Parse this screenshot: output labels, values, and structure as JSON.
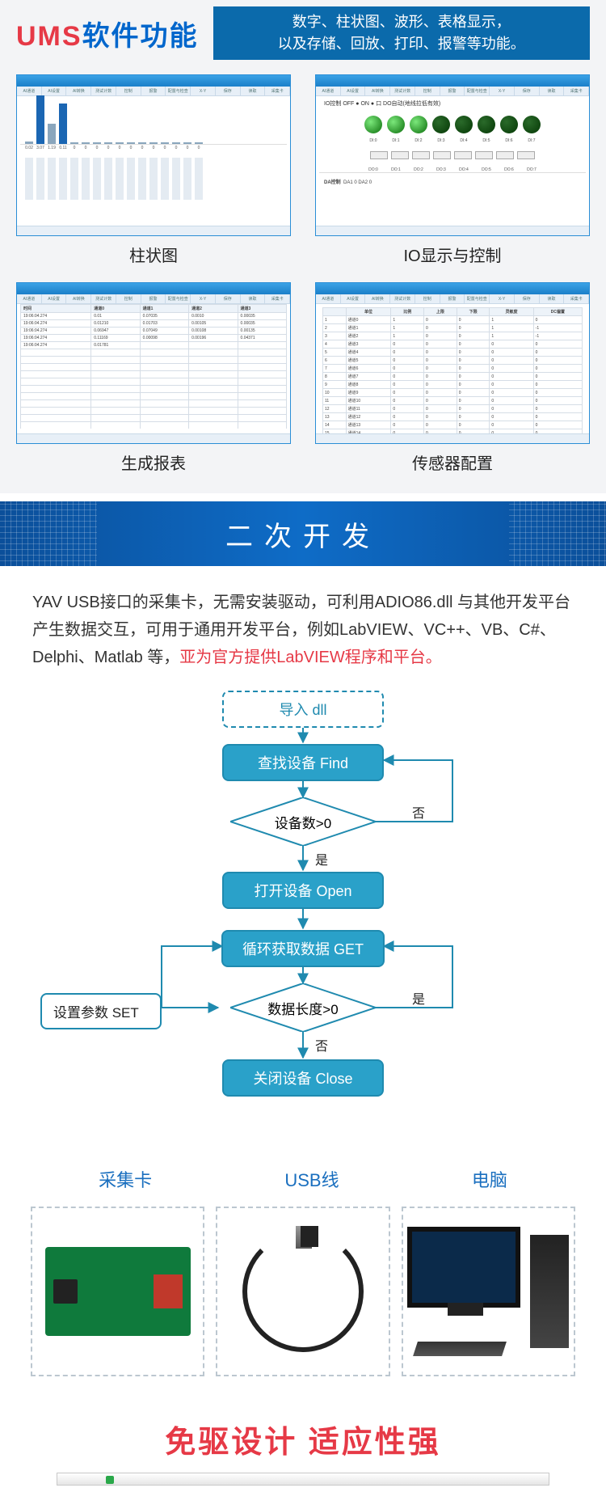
{
  "header": {
    "title_en": "UMS",
    "title_zh": "软件功能",
    "subtitle_l1": "数字、柱状图、波形、表格显示，",
    "subtitle_l2": "以及存储、回放、打印、报警等功能。"
  },
  "screenshots": {
    "tab_names": [
      "AI通道",
      "AI设置",
      "AI转换",
      "测试计数",
      "控制",
      "报警",
      "配置与检查",
      "X-Y",
      "保存",
      "读取",
      "采集卡"
    ],
    "bar": {
      "label": "柱状图",
      "values": [
        3.5,
        60,
        25,
        50,
        2,
        2,
        2,
        2,
        2,
        2,
        2,
        2,
        2,
        2,
        2,
        2
      ],
      "filled_indices": [
        1,
        3
      ],
      "readouts": [
        "0.02",
        "3.07",
        "1.19",
        "0.11",
        "0",
        "0",
        "0",
        "0",
        "0",
        "0",
        "0",
        "0",
        "0",
        "0",
        "0",
        "0"
      ]
    },
    "io": {
      "label": "IO显示与控制",
      "io_title": "IO控制    OFF ●   ON ●      口 DO自动(地线拉低有效)",
      "di_leds_on": [
        true,
        true,
        true,
        false,
        false,
        false,
        false,
        false
      ],
      "di_labels": [
        "DI:0",
        "DI:1",
        "DI:2",
        "DI:3",
        "DI:4",
        "DI:5",
        "DI:6",
        "DI:7"
      ],
      "do_labels": [
        "DO:0",
        "DO:1",
        "DO:2",
        "DO:3",
        "DO:4",
        "DO:5",
        "DO:6",
        "DO:7"
      ],
      "da_title": "DA控制",
      "da_text": "DA1  0        DA2  0"
    },
    "report": {
      "label": "生成报表",
      "columns": [
        "时间",
        "通道0",
        "通道1",
        "通道2",
        "通道3"
      ],
      "rows": [
        [
          "19:06:04.274",
          "0.01",
          " 0.07035",
          " 0.0010",
          " 0.00035"
        ],
        [
          "19:06:04.274",
          "0.01210",
          "0.01703",
          "0.00105",
          "0.00035"
        ],
        [
          "19:06:04.274",
          "0.06947",
          "0.07049",
          "0.00108",
          "0.00135"
        ],
        [
          "19:06:04.274",
          "0.11169",
          "0.00098",
          "0.00196",
          "0.04371"
        ],
        [
          "19:06:04.274",
          "0.01781",
          "",
          "",
          ""
        ]
      ]
    },
    "config": {
      "label": "传感器配置",
      "columns": [
        "",
        "单位",
        "比例",
        "上限",
        "下限",
        "灵敏度",
        "DC偏置"
      ],
      "rows": [
        [
          "1",
          "通道0",
          "1",
          "0",
          "0",
          "1",
          "0"
        ],
        [
          "2",
          "通道1",
          "1",
          "0",
          "0",
          "1",
          "-1"
        ],
        [
          "3",
          "通道2",
          "1",
          "0",
          "0",
          "1",
          "-1"
        ],
        [
          "4",
          "通道3",
          "0",
          "0",
          "0",
          "0",
          "0"
        ],
        [
          "5",
          "通道4",
          "0",
          "0",
          "0",
          "0",
          "0"
        ],
        [
          "6",
          "通道5",
          "0",
          "0",
          "0",
          "0",
          "0"
        ],
        [
          "7",
          "通道6",
          "0",
          "0",
          "0",
          "0",
          "0"
        ],
        [
          "8",
          "通道7",
          "0",
          "0",
          "0",
          "0",
          "0"
        ],
        [
          "9",
          "通道8",
          "0",
          "0",
          "0",
          "0",
          "0"
        ],
        [
          "10",
          "通道9",
          "0",
          "0",
          "0",
          "0",
          "0"
        ],
        [
          "11",
          "通道10",
          "0",
          "0",
          "0",
          "0",
          "0"
        ],
        [
          "12",
          "通道11",
          "0",
          "0",
          "0",
          "0",
          "0"
        ],
        [
          "13",
          "通道12",
          "0",
          "0",
          "0",
          "0",
          "0"
        ],
        [
          "14",
          "通道13",
          "0",
          "0",
          "0",
          "0",
          "0"
        ],
        [
          "15",
          "通道14",
          "0",
          "0",
          "0",
          "0",
          "0"
        ]
      ]
    }
  },
  "banner": {
    "title": "二次开发"
  },
  "description": {
    "text": "YAV USB接口的采集卡，无需安装驱动，可利用ADIO86.dll 与其他开发平台产生数据交互，可用于通用开发平台，例如LabVIEW、VC++、VB、C#、Delphi、Matlab 等，",
    "red": "亚为官方提供LabVIEW程序和平台。"
  },
  "flowchart": {
    "n1": "导入 dll",
    "n2": "查找设备 Find",
    "n3": "设备数>0",
    "n3_no": "否",
    "n3_yes": "是",
    "n4": "打开设备 Open",
    "n5": "循环获取数据 GET",
    "n6": "数据长度>0",
    "n6_yes": "是",
    "n6_no": "否",
    "n7": "关闭设备 Close",
    "side": "设置参数 SET",
    "colors": {
      "fill": "#2aa1c9",
      "stroke": "#1f8aaf",
      "line": "#1f8aaf"
    }
  },
  "products": {
    "l1": "采集卡",
    "l2": "USB线",
    "l3": "电脑"
  },
  "footer": {
    "title": "免驱设计 适应性强"
  }
}
